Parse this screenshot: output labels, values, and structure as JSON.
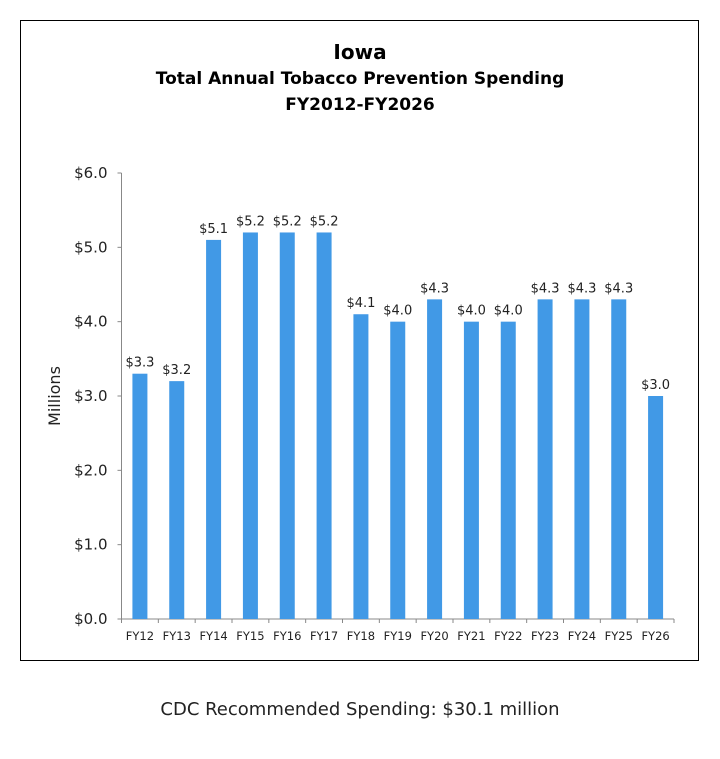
{
  "chart_data": {
    "type": "bar",
    "title": "Iowa",
    "subtitle": [
      "Total Annual Tobacco Prevention Spending",
      "FY2012-FY2026"
    ],
    "xlabel": "",
    "ylabel": "Millions",
    "ylim": [
      0,
      6
    ],
    "yticks": [
      "$0.0",
      "$1.0",
      "$2.0",
      "$3.0",
      "$4.0",
      "$5.0",
      "$6.0"
    ],
    "categories": [
      "FY12",
      "FY13",
      "FY14",
      "FY15",
      "FY16",
      "FY17",
      "FY18",
      "FY19",
      "FY20",
      "FY21",
      "FY22",
      "FY23",
      "FY24",
      "FY25",
      "FY26"
    ],
    "values": [
      3.3,
      3.2,
      5.1,
      5.2,
      5.2,
      5.2,
      4.1,
      4.0,
      4.3,
      4.0,
      4.0,
      4.3,
      4.3,
      4.3,
      3.0
    ],
    "data_labels": [
      "$3.3",
      "$3.2",
      "$5.1",
      "$5.2",
      "$5.2",
      "$5.2",
      "$4.1",
      "$4.0",
      "$4.3",
      "$4.0",
      "$4.0",
      "$4.3",
      "$4.3",
      "$4.3",
      "$3.0"
    ],
    "bar_color": "#4199e6",
    "grid": false,
    "legend": "none"
  },
  "footnote": "CDC Recommended Spending: $30.1 million"
}
